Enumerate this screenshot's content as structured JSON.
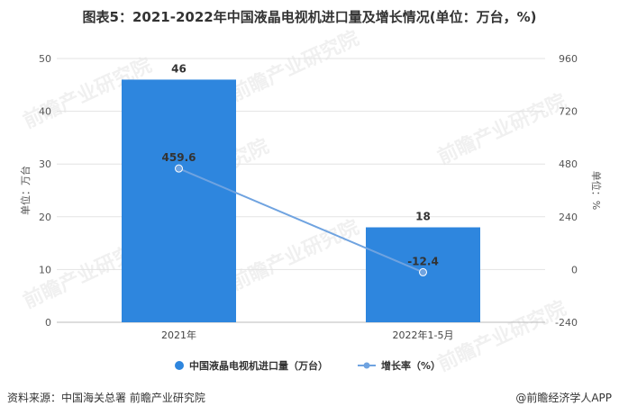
{
  "title": "图表5：2021-2022年中国液晶电视机进口量及增长情况(单位：万台，%)",
  "source": "资料来源：中国海关总署 前瞻产业研究院",
  "credit": "@前瞻经济学人APP",
  "watermark": "前瞻产业研究院",
  "colors": {
    "bar": "#2E86DE",
    "line": "#6FA3E0",
    "text": "#333333",
    "grid": "#E3E3E3"
  },
  "chart_data": {
    "type": "bar",
    "categories": [
      "2021年",
      "2022年1-5月"
    ],
    "series": [
      {
        "name": "中国液晶电视机进口量（万台）",
        "type": "bar",
        "axis": "left",
        "values": [
          46,
          18
        ],
        "labels": [
          "46",
          "18"
        ]
      },
      {
        "name": "增长率（%）",
        "type": "line",
        "axis": "right",
        "values": [
          459.6,
          -12.4
        ],
        "labels": [
          "459.6",
          "-12.4"
        ]
      }
    ],
    "ylabel": "单位：万台",
    "y2label": "单位：%",
    "ylim": [
      0,
      50
    ],
    "y2lim": [
      -240,
      960
    ],
    "yticks": [
      "0",
      "10",
      "20",
      "30",
      "40",
      "50"
    ],
    "y2ticks": [
      "-240",
      "0",
      "240",
      "480",
      "720",
      "960"
    ],
    "grid": true,
    "legend": "bottom"
  }
}
